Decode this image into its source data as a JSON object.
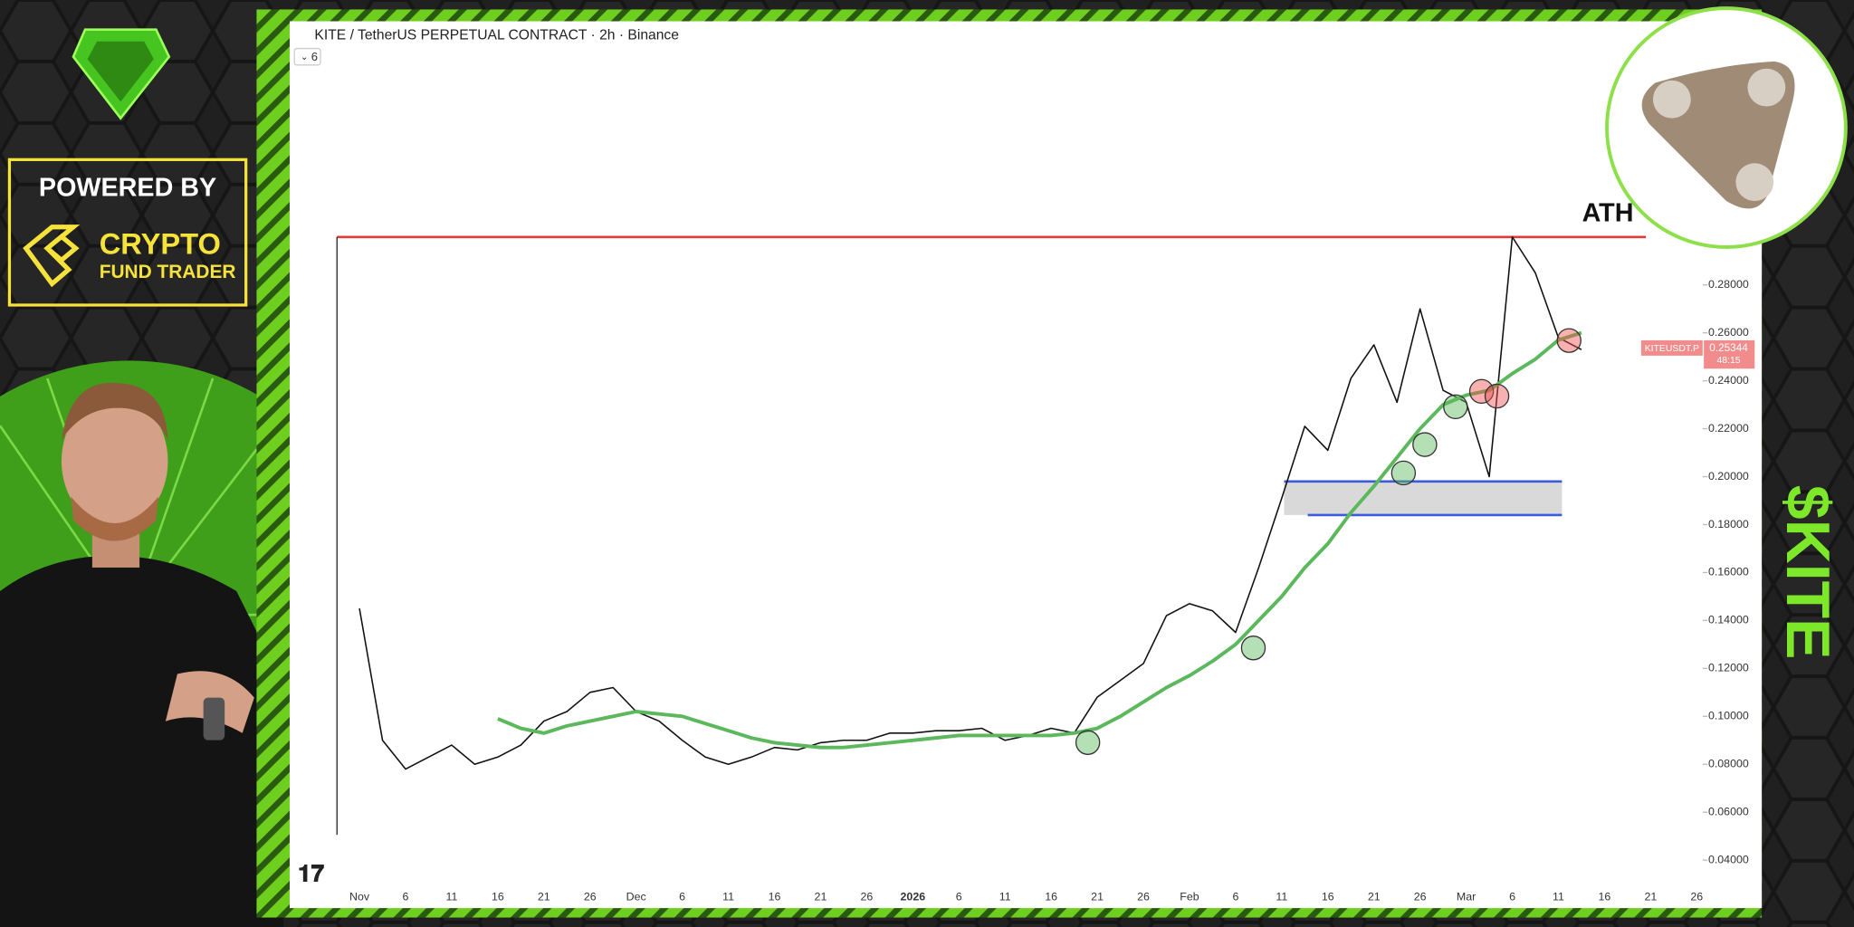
{
  "header": {
    "title": "KITE / TetherUS PERPETUAL CONTRACT · 2h · Binance",
    "badge": "6"
  },
  "branding": {
    "powered_by": "POWERED BY",
    "name_line1": "CRYPTO",
    "name_line2": "FUND TRADER",
    "ticker": "$KITE"
  },
  "chart_data": {
    "type": "line",
    "categories": [
      "Nov",
      null,
      "6",
      null,
      "11",
      null,
      "16",
      null,
      "21",
      null,
      "26",
      null,
      "Dec",
      null,
      "6",
      null,
      "11",
      null,
      "16",
      null,
      "21",
      null,
      "26",
      null,
      "2026",
      null,
      "6",
      null,
      "11",
      null,
      "16",
      null,
      "21",
      null,
      "26",
      null,
      "Feb",
      null,
      "6",
      null,
      "11",
      null,
      "16",
      null,
      "21",
      null,
      "26",
      null,
      "Mar",
      null,
      "6",
      null,
      "11",
      null,
      "16",
      null,
      "21",
      null,
      "26"
    ],
    "series": [
      {
        "color": "#111111",
        "values": [
          0.145,
          0.09,
          0.078,
          0.083,
          0.088,
          0.08,
          0.083,
          0.088,
          0.098,
          0.102,
          0.11,
          0.112,
          0.102,
          0.098,
          0.09,
          0.083,
          0.08,
          0.083,
          0.087,
          0.086,
          0.089,
          0.09,
          0.09,
          0.093,
          0.093,
          0.094,
          0.094,
          0.095,
          0.09,
          0.092,
          0.095,
          0.093,
          0.108,
          0.115,
          0.122,
          0.142,
          0.147,
          0.144,
          0.135,
          0.162,
          0.191,
          0.221,
          0.211,
          0.241,
          0.255,
          0.231,
          0.27,
          0.236,
          0.231,
          0.2,
          0.3,
          0.285,
          0.258,
          0.253,
          null,
          null,
          null,
          null,
          null
        ]
      },
      {
        "color": "#5cb85c",
        "values": [
          null,
          null,
          null,
          null,
          null,
          null,
          0.099,
          0.095,
          0.093,
          0.096,
          0.098,
          0.1,
          0.102,
          0.101,
          0.1,
          0.097,
          0.094,
          0.091,
          0.089,
          0.088,
          0.087,
          0.087,
          0.088,
          0.089,
          0.09,
          0.091,
          0.092,
          0.092,
          0.092,
          0.092,
          0.092,
          0.093,
          0.095,
          0.1,
          0.106,
          0.112,
          0.117,
          0.123,
          0.13,
          0.14,
          0.15,
          0.162,
          0.172,
          0.185,
          0.196,
          0.208,
          0.22,
          0.23,
          0.234,
          0.236,
          0.243,
          0.249,
          0.257,
          0.26,
          null,
          null,
          null,
          null,
          null
        ]
      }
    ],
    "ylim": [
      0.02,
      0.389
    ],
    "yticks": [
      {
        "value": 0.04,
        "label": "0.04000"
      },
      {
        "value": 0.06,
        "label": "0.06000"
      },
      {
        "value": 0.08,
        "label": "0.08000"
      },
      {
        "value": 0.1,
        "label": "0.10000"
      },
      {
        "value": 0.12,
        "label": "0.12000"
      },
      {
        "value": 0.14,
        "label": "0.14000"
      },
      {
        "value": 0.16,
        "label": "0.16000"
      },
      {
        "value": 0.18,
        "label": "0.18000"
      },
      {
        "value": 0.2,
        "label": "0.20000"
      },
      {
        "value": 0.22,
        "label": "0.22000"
      },
      {
        "value": 0.24,
        "label": "0.24000"
      },
      {
        "value": 0.26,
        "label": "0.26000"
      },
      {
        "value": 0.28,
        "label": "0.28000"
      }
    ],
    "ath": {
      "label": "ATH",
      "value": 0.3,
      "color": "#e53935"
    },
    "support_zone": {
      "low": 0.184,
      "high": 0.198,
      "color": "#3b5bdb"
    },
    "last_price": {
      "symbol": "KITEUSDT.P",
      "value": 0.25344,
      "countdown": "48:15",
      "color": "#f28b8b"
    }
  }
}
